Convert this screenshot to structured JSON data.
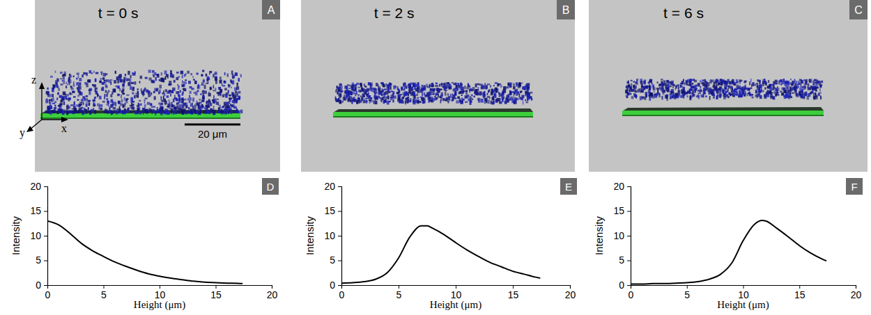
{
  "images": [
    {
      "letter": "A",
      "title": "t = 0 s"
    },
    {
      "letter": "B",
      "title": "t = 2 s"
    },
    {
      "letter": "C",
      "title": "t = 6 s"
    }
  ],
  "axis_labels": [
    "z",
    "y",
    "x"
  ],
  "scale_bar": "20 μm",
  "chart_data": [
    {
      "type": "line",
      "panel": "D",
      "x_label": "Height (μm)",
      "y_label": "Intensity",
      "color": "#000000",
      "x": [
        0,
        1,
        2,
        3,
        4,
        5,
        6,
        7,
        8,
        9,
        10,
        11,
        12,
        13,
        14,
        15,
        16,
        17,
        17.4
      ],
      "values": [
        13,
        12.2,
        10.5,
        8.5,
        7,
        5.8,
        4.7,
        3.8,
        3.0,
        2.3,
        1.8,
        1.4,
        1.1,
        0.8,
        0.6,
        0.5,
        0.4,
        0.35,
        0.3
      ],
      "xlim": [
        0,
        20
      ],
      "xticks": [
        0,
        5,
        10,
        15,
        20
      ],
      "ylim": [
        0,
        20
      ],
      "yticks": [
        0,
        5,
        10,
        15,
        20
      ]
    },
    {
      "type": "line",
      "panel": "E",
      "x_label": "Height (μm)",
      "y_label": "Intensity",
      "color": "#000000",
      "x": [
        0,
        1,
        2,
        3,
        4,
        5,
        6,
        7,
        7.5,
        8,
        9,
        10,
        11,
        12,
        13,
        14,
        15,
        16,
        17,
        17.4
      ],
      "values": [
        0.4,
        0.5,
        0.7,
        1.2,
        2.5,
        5.5,
        9.8,
        12.0,
        12.0,
        11.5,
        10.2,
        8.6,
        7.1,
        5.8,
        4.6,
        3.7,
        2.8,
        2.2,
        1.6,
        1.4
      ],
      "xlim": [
        0,
        20
      ],
      "xticks": [
        0,
        5,
        10,
        15,
        20
      ],
      "ylim": [
        0,
        20
      ],
      "yticks": [
        0,
        5,
        10,
        15,
        20
      ]
    },
    {
      "type": "line",
      "panel": "F",
      "x_label": "Height (μm)",
      "y_label": "Intensity",
      "color": "#000000",
      "x": [
        0,
        1,
        2,
        3,
        4,
        5,
        6,
        7,
        8,
        9,
        10,
        11,
        11.7,
        12,
        13,
        14,
        15,
        16,
        17,
        17.4
      ],
      "values": [
        0.2,
        0.2,
        0.3,
        0.3,
        0.4,
        0.5,
        0.7,
        1.2,
        2.2,
        4.5,
        9,
        12.3,
        13.1,
        13,
        11.5,
        9.8,
        8,
        6.5,
        5.3,
        4.9
      ],
      "xlim": [
        0,
        20
      ],
      "xticks": [
        0,
        5,
        10,
        15,
        20
      ],
      "ylim": [
        0,
        20
      ],
      "yticks": [
        0,
        5,
        10,
        15,
        20
      ]
    }
  ]
}
